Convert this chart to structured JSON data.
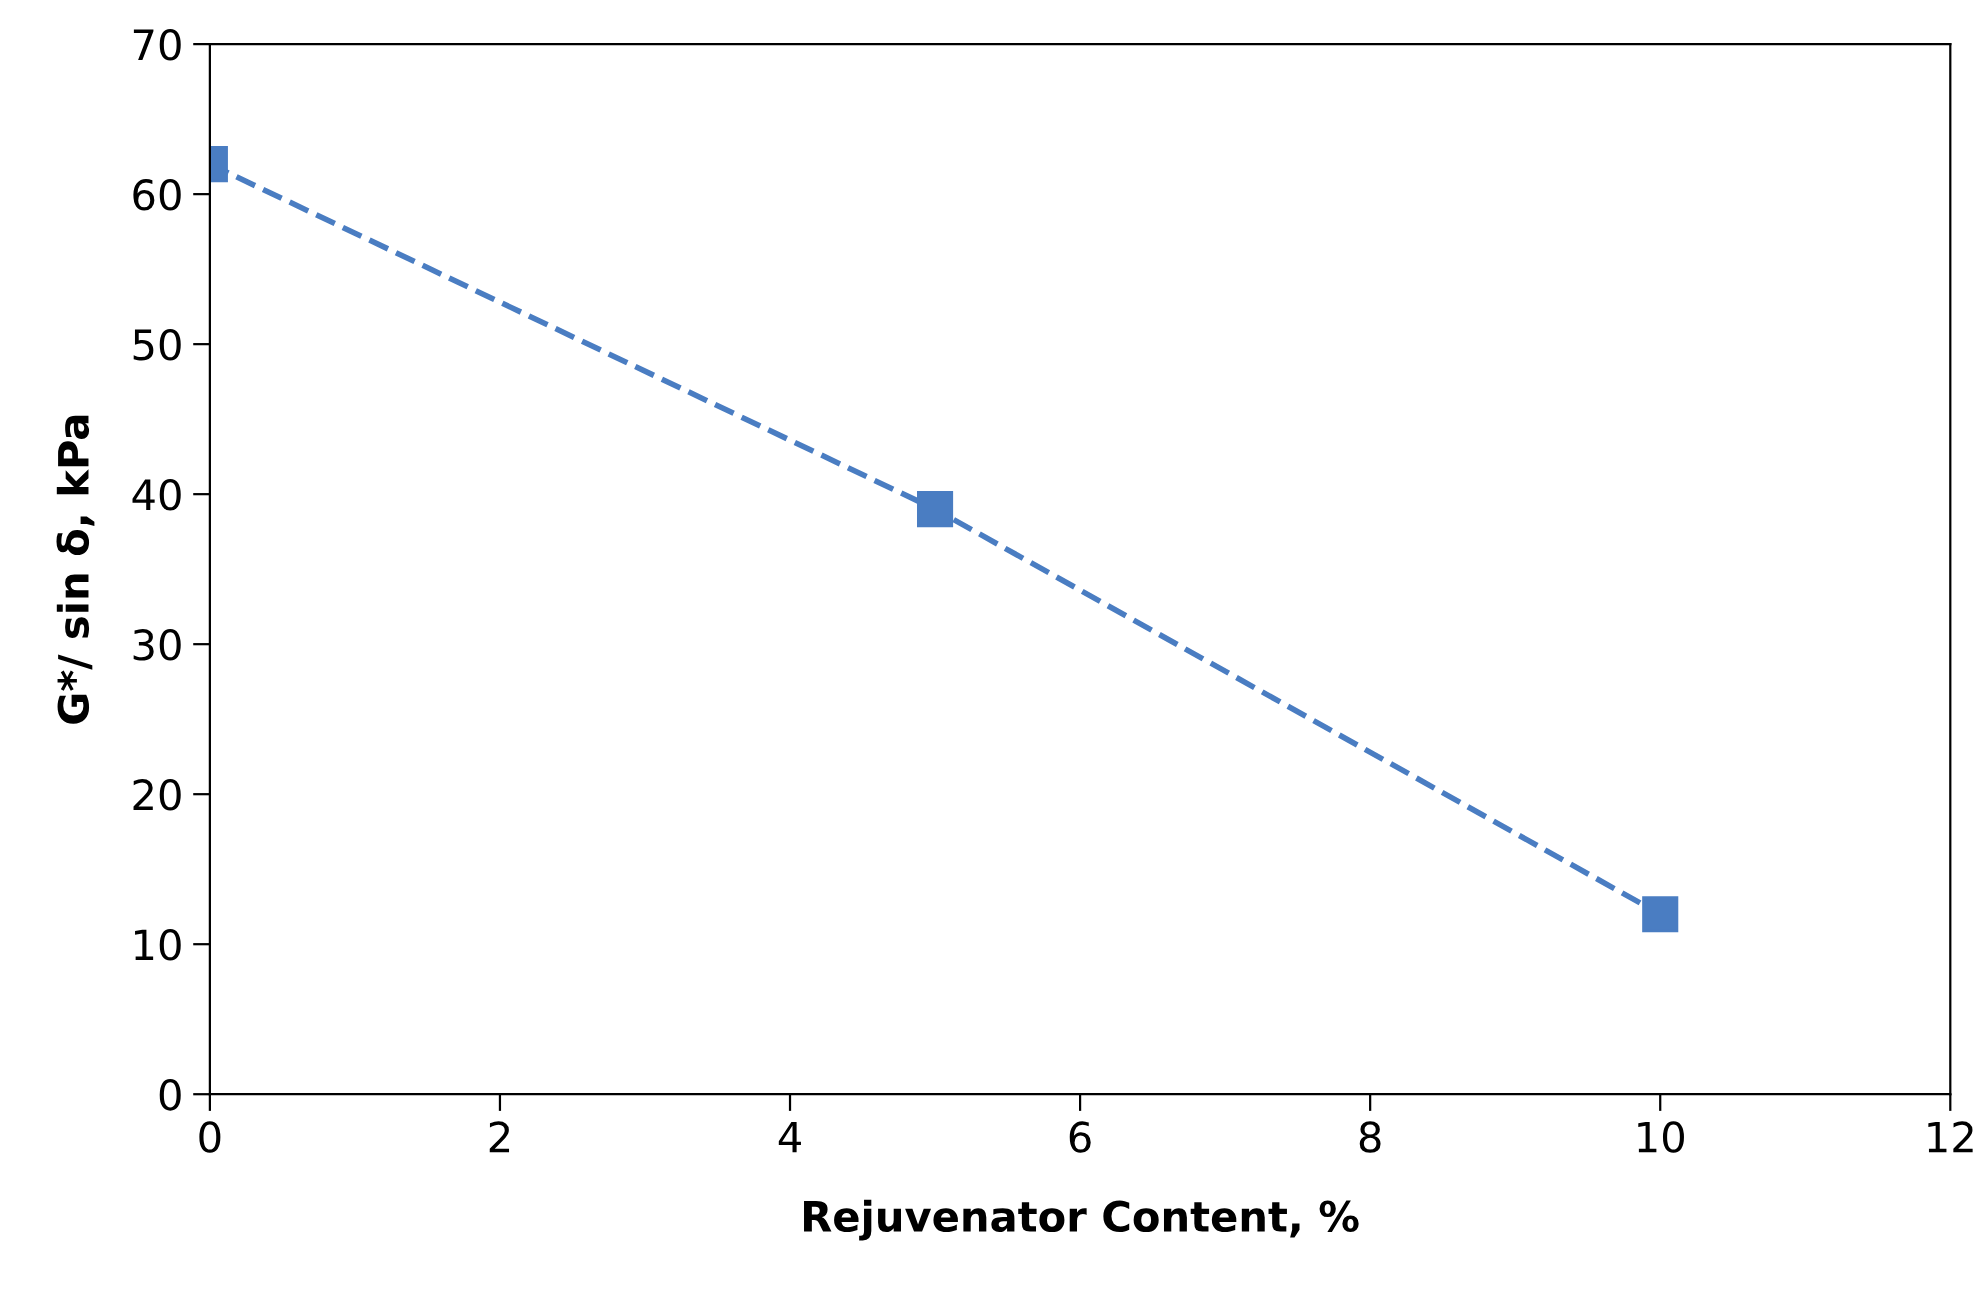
{
  "chart_data": {
    "type": "line",
    "xlabel": "Rejuvenator Content, %",
    "ylabel": "G*/ sin δ, kPa",
    "x": [
      0,
      5,
      10
    ],
    "series": [
      {
        "color": "#4a7dc2",
        "values": [
          62,
          39,
          12
        ]
      }
    ],
    "xlim": [
      0,
      12
    ],
    "xticks": [
      0,
      2,
      4,
      6,
      8,
      10,
      12
    ],
    "ylim": [
      0,
      70
    ],
    "yticks": [
      0,
      10,
      20,
      30,
      40,
      50,
      60,
      70
    ],
    "marker": "square",
    "line_style": "dashed",
    "grid": false,
    "legend": false
  }
}
